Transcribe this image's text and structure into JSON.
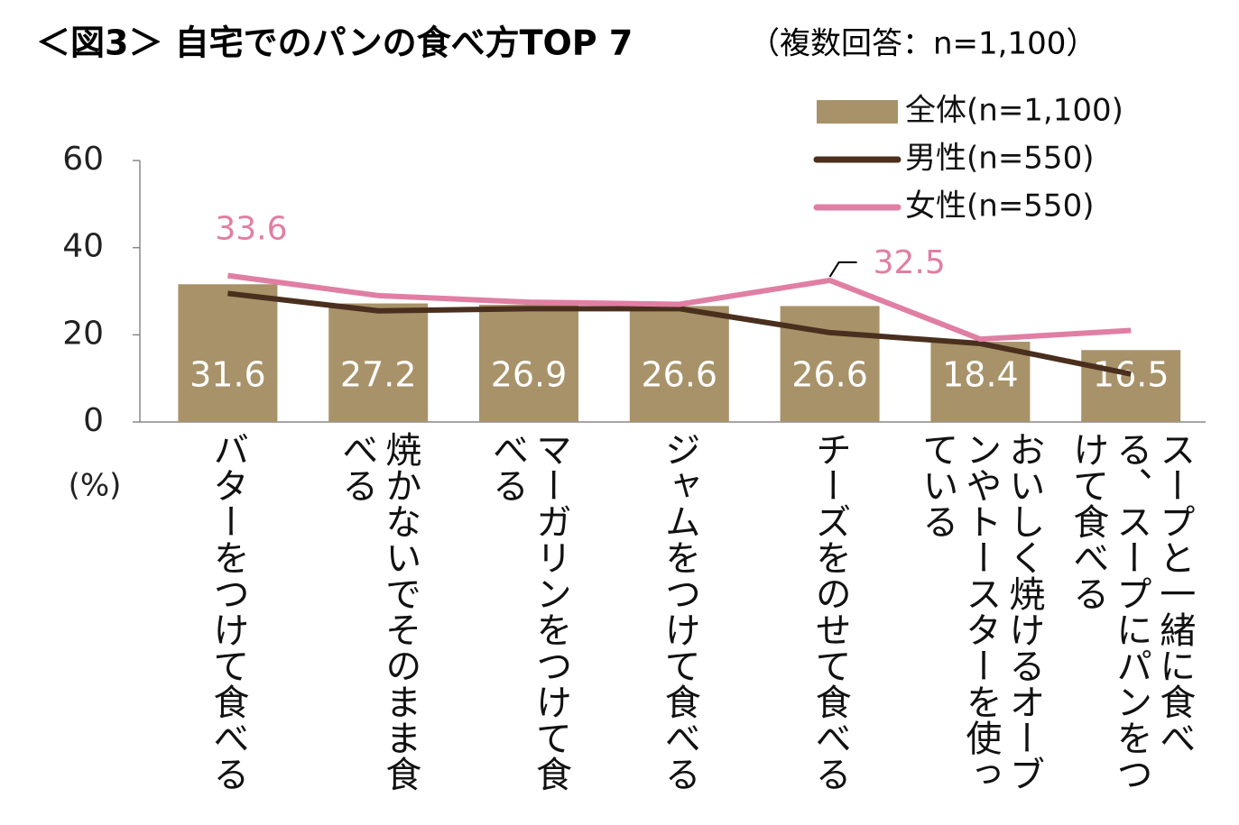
{
  "chart_data": {
    "type": "bar",
    "title": "＜図3＞ 自宅でのパンの食べ方TOP 7",
    "subtitle": "（複数回答：n=1,100）",
    "y_label": "(%)",
    "categories": [
      "バターをつけて食べる",
      "焼かないでそのまま食べる",
      "マーガリンをつけて食べる",
      "ジャムをつけて食べる",
      "チーズをのせて食べる",
      "おいしく焼けるオーブンやトースターを使っている",
      "スープと一緒に食べる、スープにパンをつけて食べる"
    ],
    "series": [
      {
        "name": "全体(n=1,100)",
        "type": "bar",
        "color": "#a89269",
        "values": [
          31.6,
          27.2,
          26.9,
          26.6,
          26.6,
          18.4,
          16.5
        ]
      },
      {
        "name": "男性(n=550)",
        "type": "line",
        "color": "#4a2f1e",
        "values": [
          29.5,
          25.5,
          26,
          26,
          20.5,
          18,
          11
        ]
      },
      {
        "name": "女性(n=550)",
        "type": "line",
        "color": "#e07fa3",
        "values": [
          33.6,
          29,
          27.5,
          27,
          32.5,
          19,
          21
        ],
        "value_labels": [
          "33.6",
          null,
          null,
          null,
          "32.5",
          null,
          null
        ]
      }
    ],
    "ylim": [
      0,
      60
    ],
    "yticks": [
      0,
      20,
      40,
      60
    ],
    "grid": false,
    "legend": "top-right"
  }
}
